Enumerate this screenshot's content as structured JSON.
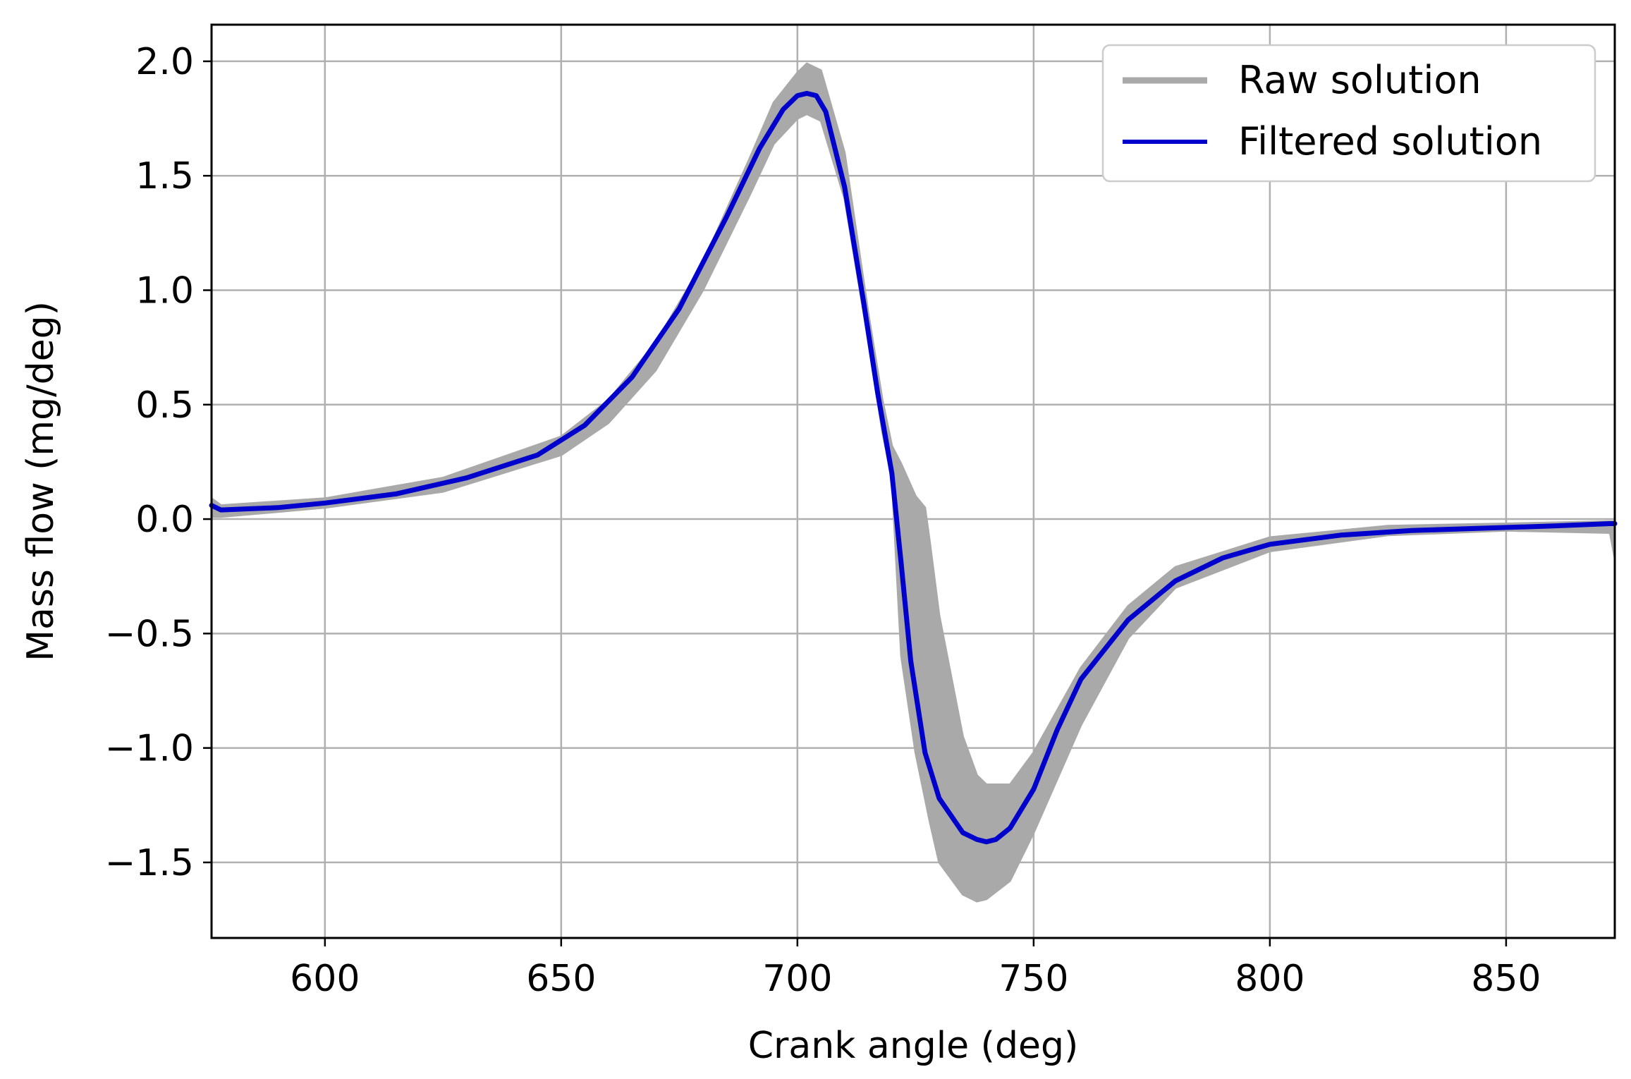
{
  "chart_data": {
    "type": "line",
    "xlabel": "Crank angle (deg)",
    "ylabel": "Mass flow (mg/deg)",
    "xlim": [
      576,
      873
    ],
    "ylim": [
      -1.83,
      2.16
    ],
    "xticks": [
      600,
      650,
      700,
      750,
      800,
      850
    ],
    "xtick_labels": [
      "600",
      "650",
      "700",
      "750",
      "800",
      "850"
    ],
    "yticks": [
      2.0,
      1.5,
      1.0,
      0.5,
      0.0,
      -0.5,
      -1.0,
      -1.5
    ],
    "ytick_labels": [
      "2.0",
      "1.5",
      "1.0",
      "0.5",
      "0.0",
      "−0.5",
      "−1.0",
      "−1.5"
    ],
    "grid": true,
    "legend_position": "top-right",
    "series": [
      {
        "name": "Raw solution",
        "color": "#a9a9a9",
        "style": "band",
        "x": [
          576,
          578,
          600,
          625,
          650,
          660,
          670,
          680,
          690,
          695,
          700,
          702,
          705,
          710,
          715,
          718,
          720,
          722,
          725,
          727,
          728,
          730,
          735,
          738,
          740,
          745,
          750,
          760,
          770,
          780,
          800,
          825,
          850,
          872,
          873
        ],
        "upper": [
          0.09,
          0.06,
          0.09,
          0.18,
          0.36,
          0.52,
          0.77,
          1.12,
          1.58,
          1.82,
          1.95,
          1.99,
          1.96,
          1.6,
          0.9,
          0.52,
          0.32,
          0.24,
          0.1,
          0.05,
          -0.1,
          -0.42,
          -0.95,
          -1.12,
          -1.16,
          -1.16,
          -1.02,
          -0.65,
          -0.38,
          -0.21,
          -0.08,
          -0.03,
          -0.02,
          -0.01,
          -0.01
        ],
        "lower": [
          0.01,
          0.01,
          0.05,
          0.12,
          0.28,
          0.42,
          0.65,
          1.0,
          1.42,
          1.64,
          1.75,
          1.77,
          1.74,
          1.4,
          0.78,
          0.38,
          0.18,
          -0.6,
          -1.02,
          -1.22,
          -1.32,
          -1.5,
          -1.64,
          -1.67,
          -1.66,
          -1.58,
          -1.37,
          -0.9,
          -0.52,
          -0.3,
          -0.14,
          -0.07,
          -0.05,
          -0.06,
          -0.17
        ]
      },
      {
        "name": "Filtered solution",
        "color": "#0000cd",
        "style": "line",
        "x": [
          576,
          578,
          590,
          600,
          615,
          630,
          645,
          655,
          665,
          675,
          685,
          692,
          697,
          700,
          702,
          704,
          706,
          710,
          714,
          717,
          720,
          722,
          724,
          727,
          730,
          735,
          738,
          740,
          742,
          745,
          750,
          755,
          760,
          770,
          780,
          790,
          800,
          815,
          830,
          845,
          860,
          872,
          873
        ],
        "y": [
          0.06,
          0.04,
          0.05,
          0.07,
          0.11,
          0.18,
          0.28,
          0.41,
          0.62,
          0.92,
          1.32,
          1.62,
          1.79,
          1.85,
          1.86,
          1.85,
          1.78,
          1.45,
          0.95,
          0.55,
          0.2,
          -0.2,
          -0.62,
          -1.02,
          -1.22,
          -1.37,
          -1.4,
          -1.41,
          -1.4,
          -1.35,
          -1.18,
          -0.92,
          -0.7,
          -0.44,
          -0.27,
          -0.17,
          -0.11,
          -0.07,
          -0.05,
          -0.04,
          -0.03,
          -0.02,
          -0.02
        ]
      }
    ]
  }
}
